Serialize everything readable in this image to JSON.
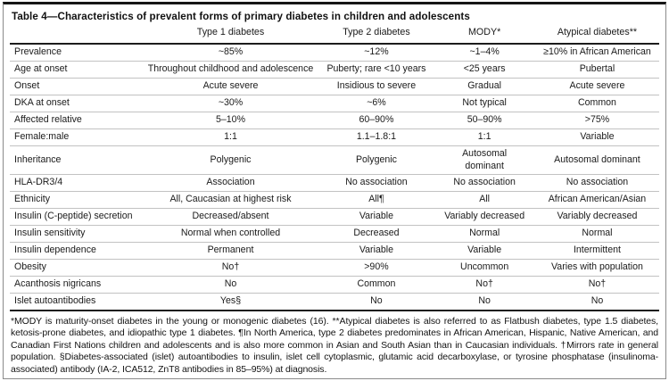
{
  "page": {
    "background_color": "#ffffff",
    "text_color": "#141414",
    "rule_color": "#1c1c1c",
    "separator_color": "#c2c2c2",
    "border_color": "#8a8a8a"
  },
  "table": {
    "title": "Table 4—Characteristics of prevalent forms of primary diabetes in children and adolescents",
    "columns": [
      "",
      "Type 1 diabetes",
      "Type 2 diabetes",
      "MODY*",
      "Atypical diabetes**"
    ],
    "rows": [
      {
        "label": "Prevalence",
        "values": [
          "~85%",
          "~12%",
          "~1–4%",
          "≥10% in African American"
        ]
      },
      {
        "label": "Age at onset",
        "values": [
          "Throughout childhood and adolescence",
          "Puberty; rare <10 years",
          "<25 years",
          "Pubertal"
        ]
      },
      {
        "label": "Onset",
        "values": [
          "Acute severe",
          "Insidious to severe",
          "Gradual",
          "Acute severe"
        ]
      },
      {
        "label": "DKA at onset",
        "values": [
          "~30%",
          "~6%",
          "Not typical",
          "Common"
        ]
      },
      {
        "label": "Affected relative",
        "values": [
          "5–10%",
          "60–90%",
          "50–90%",
          ">75%"
        ]
      },
      {
        "label": "Female:male",
        "values": [
          "1:1",
          "1.1–1.8:1",
          "1:1",
          "Variable"
        ]
      },
      {
        "label": "Inheritance",
        "values": [
          "Polygenic",
          "Polygenic",
          "Autosomal\ndominant",
          "Autosomal dominant"
        ]
      },
      {
        "label": "HLA-DR3/4",
        "values": [
          "Association",
          "No association",
          "No association",
          "No association"
        ]
      },
      {
        "label": "Ethnicity",
        "values": [
          "All, Caucasian at highest risk",
          "All¶",
          "All",
          "African American/Asian"
        ]
      },
      {
        "label": "Insulin (C-peptide) secretion",
        "values": [
          "Decreased/absent",
          "Variable",
          "Variably decreased",
          "Variably decreased"
        ]
      },
      {
        "label": "Insulin sensitivity",
        "values": [
          "Normal when controlled",
          "Decreased",
          "Normal",
          "Normal"
        ]
      },
      {
        "label": "Insulin dependence",
        "values": [
          "Permanent",
          "Variable",
          "Variable",
          "Intermittent"
        ]
      },
      {
        "label": "Obesity",
        "values": [
          "No†",
          ">90%",
          "Uncommon",
          "Varies with population"
        ]
      },
      {
        "label": "Acanthosis nigricans",
        "values": [
          "No",
          "Common",
          "No†",
          "No†"
        ]
      },
      {
        "label": "Islet autoantibodies",
        "values": [
          "Yes§",
          "No",
          "No",
          "No"
        ]
      }
    ],
    "footnote": "*MODY is maturity-onset diabetes in the young or monogenic diabetes (16). **Atypical diabetes is also referred to as Flatbush diabetes, type 1.5 diabetes, ketosis-prone diabetes, and idiopathic type 1 diabetes. ¶In North America, type 2 diabetes predominates in African American, Hispanic, Native American, and Canadian First Nations children and adolescents and is also more common in Asian and South Asian than in Caucasian individuals. †Mirrors rate in general population. §Diabetes-associated (islet) autoantibodies to insulin, islet cell cytoplasmic, glutamic acid decarboxylase, or tyrosine phosphatase (insulinoma-associated) antibody (IA-2, ICA512, ZnT8 antibodies in 85–95%) at diagnosis."
  }
}
